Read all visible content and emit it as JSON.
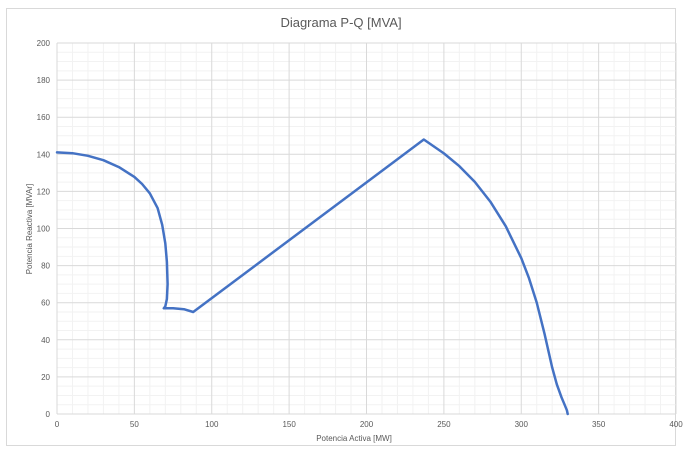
{
  "chart_data": {
    "type": "line",
    "title": "Diagrama P-Q [MVA]",
    "xlabel": "Potencia Activa [MW]",
    "ylabel": "Potencia Reactiva [MVAr]",
    "xlim": [
      0,
      400
    ],
    "ylim": [
      0,
      200
    ],
    "x_ticks": [
      "0",
      "50",
      "100",
      "150",
      "200",
      "250",
      "300",
      "350",
      "400"
    ],
    "y_ticks": [
      "0",
      "20",
      "40",
      "60",
      "80",
      "100",
      "120",
      "140",
      "160",
      "180",
      "200"
    ],
    "grid": true,
    "minor_grid": true,
    "line_color": "#4472c4",
    "series": [
      {
        "points": [
          [
            0,
            141
          ],
          [
            10,
            140.6
          ],
          [
            20,
            139.2
          ],
          [
            30,
            136.8
          ],
          [
            40,
            133.1
          ],
          [
            50,
            127.8
          ],
          [
            55,
            124
          ],
          [
            60,
            119
          ],
          [
            65,
            111
          ],
          [
            68,
            102
          ],
          [
            70,
            92
          ],
          [
            71,
            82
          ],
          [
            71.5,
            70
          ],
          [
            71,
            62
          ],
          [
            70,
            58
          ],
          [
            69,
            57
          ],
          [
            75,
            57
          ],
          [
            82,
            56.5
          ],
          [
            88,
            55
          ],
          [
            237,
            148
          ],
          [
            250,
            140.5
          ],
          [
            260,
            133.6
          ],
          [
            270,
            125.1
          ],
          [
            280,
            114.5
          ],
          [
            290,
            101.2
          ],
          [
            300,
            84
          ],
          [
            305,
            73.2
          ],
          [
            310,
            60.1
          ],
          [
            315,
            43.3
          ],
          [
            320,
            25
          ],
          [
            323,
            16
          ],
          [
            326,
            9
          ],
          [
            328,
            5
          ],
          [
            329.5,
            2
          ],
          [
            330,
            0
          ]
        ]
      }
    ]
  }
}
